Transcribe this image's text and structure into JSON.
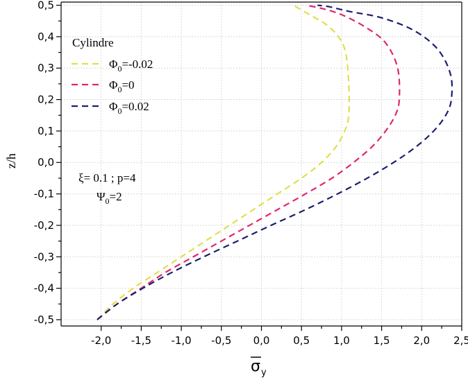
{
  "chart_data": {
    "type": "line",
    "title": "",
    "xlabel": "σ̄_y",
    "xlabel_symbol": "σ",
    "xlabel_subscript": "y",
    "ylabel": "z/h",
    "xlim": [
      -2.5,
      2.5
    ],
    "ylim": [
      -0.52,
      0.51
    ],
    "x_ticks": [
      -2.0,
      -1.5,
      -1.0,
      -0.5,
      0.0,
      0.5,
      1.0,
      1.5,
      2.0,
      2.5
    ],
    "x_tick_labels": [
      "-2,0",
      "-1,5",
      "-1,0",
      "-0,5",
      "0,0",
      "0,5",
      "1,0",
      "1,5",
      "2,0",
      "2,5"
    ],
    "y_ticks": [
      -0.5,
      -0.4,
      -0.3,
      -0.2,
      -0.1,
      0.0,
      0.1,
      0.2,
      0.3,
      0.4,
      0.5
    ],
    "y_tick_labels": [
      "-0,5",
      "-0,4",
      "-0,3",
      "-0,2",
      "-0,1",
      "0,0",
      "0,1",
      "0,2",
      "0,3",
      "0,4",
      "0,5"
    ],
    "grid": true,
    "legend_position": "upper-left",
    "legend_title": "Cylindre",
    "series": [
      {
        "name": "Φ0=-0.02",
        "label_main": "Φ",
        "label_sub": "0",
        "label_value": "=-0.02",
        "color": "#dfe04a",
        "x": [
          -2.05,
          -1.85,
          -1.6,
          -1.3,
          -1.0,
          -0.7,
          -0.4,
          -0.1,
          0.2,
          0.5,
          0.75,
          0.93,
          1.04,
          1.09,
          1.09,
          1.05,
          0.96,
          0.8,
          0.6,
          0.4
        ],
        "y": [
          -0.5,
          -0.45,
          -0.4,
          -0.35,
          -0.3,
          -0.25,
          -0.2,
          -0.15,
          -0.1,
          -0.05,
          0.0,
          0.05,
          0.1,
          0.15,
          0.25,
          0.35,
          0.4,
          0.44,
          0.47,
          0.5
        ]
      },
      {
        "name": "Φ0=0",
        "label_main": "Φ",
        "label_sub": "0",
        "label_value": "=0",
        "color": "#e0266f",
        "x": [
          -2.05,
          -1.8,
          -1.5,
          -1.2,
          -0.85,
          -0.5,
          -0.15,
          0.2,
          0.55,
          0.88,
          1.15,
          1.38,
          1.55,
          1.67,
          1.72,
          1.7,
          1.55,
          1.3,
          1.0,
          0.75,
          0.55
        ],
        "y": [
          -0.5,
          -0.45,
          -0.4,
          -0.35,
          -0.3,
          -0.25,
          -0.2,
          -0.15,
          -0.1,
          -0.05,
          0.0,
          0.05,
          0.1,
          0.15,
          0.2,
          0.3,
          0.38,
          0.43,
          0.47,
          0.49,
          0.5
        ]
      },
      {
        "name": "Φ0=0.02",
        "label_main": "Φ",
        "label_sub": "0",
        "label_value": "=0.02",
        "color": "#1b1f6b",
        "x": [
          -2.05,
          -1.8,
          -1.48,
          -1.12,
          -0.72,
          -0.3,
          0.12,
          0.55,
          0.95,
          1.32,
          1.65,
          1.93,
          2.15,
          2.3,
          2.37,
          2.36,
          2.2,
          1.9,
          1.5,
          1.1,
          0.85,
          0.7
        ],
        "y": [
          -0.5,
          -0.45,
          -0.4,
          -0.35,
          -0.3,
          -0.25,
          -0.2,
          -0.15,
          -0.1,
          -0.05,
          0.0,
          0.05,
          0.1,
          0.15,
          0.2,
          0.28,
          0.36,
          0.42,
          0.46,
          0.48,
          0.495,
          0.5
        ]
      }
    ],
    "annotations": [
      {
        "text_main": "ξ= 0.1 ; p=4"
      },
      {
        "text_main": "Ψ",
        "text_sub": "0",
        "text_value": "=2"
      }
    ]
  }
}
